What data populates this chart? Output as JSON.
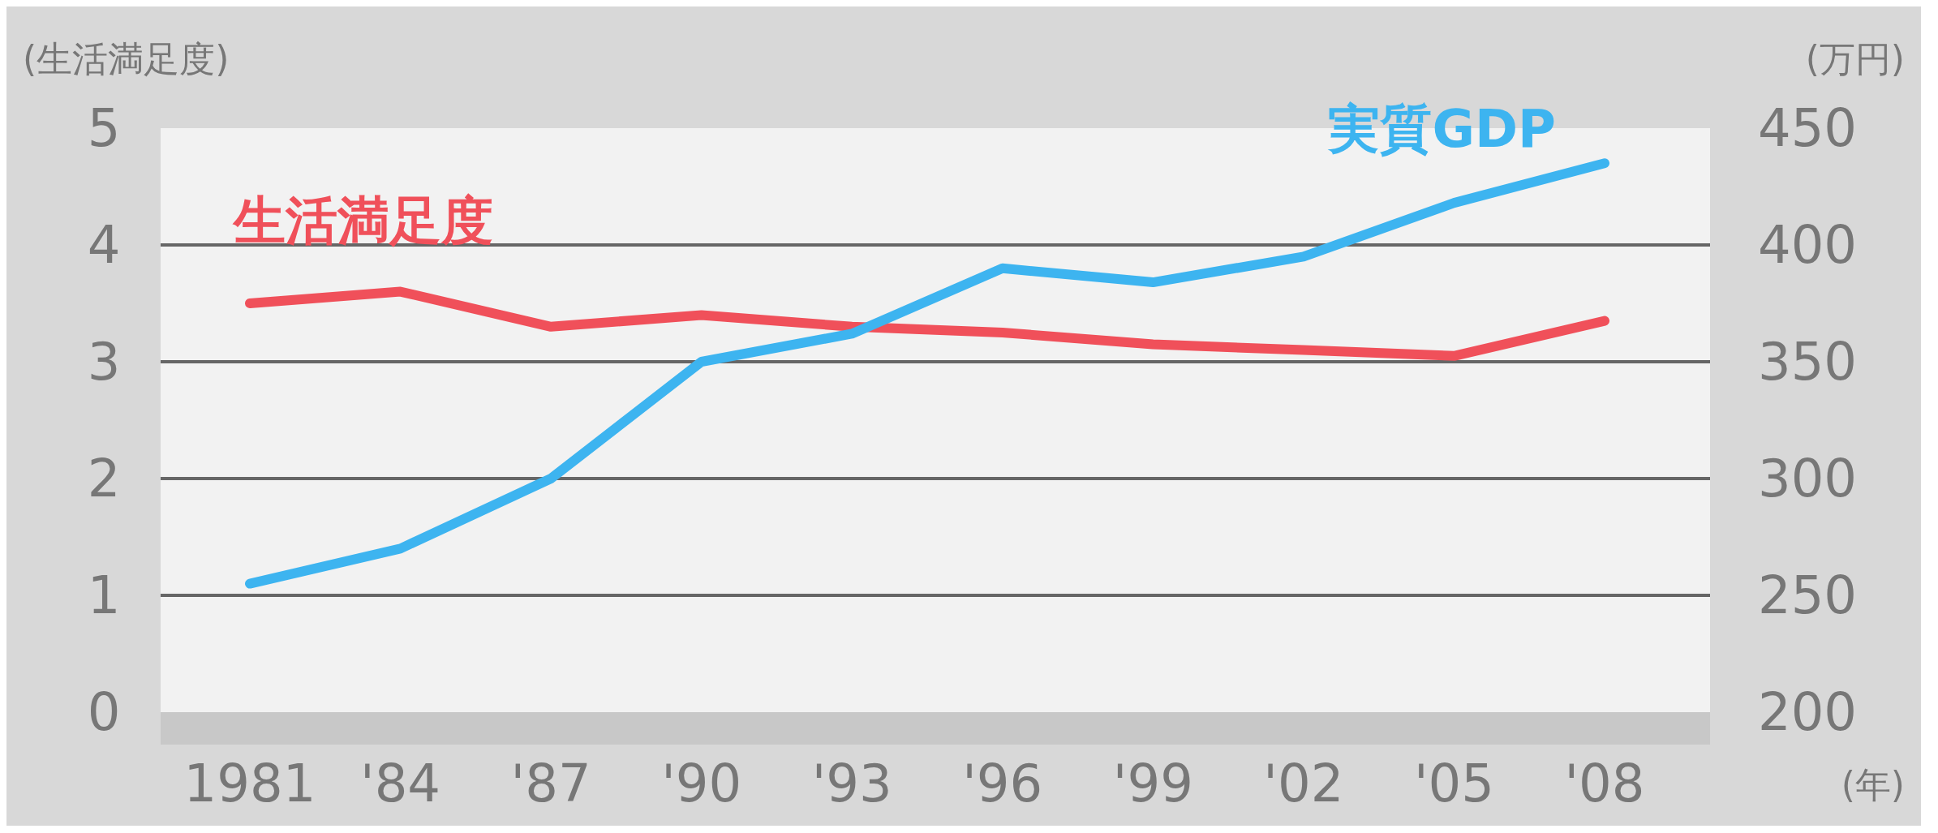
{
  "chart_data": {
    "type": "line",
    "categories": [
      "1981",
      "'84",
      "'87",
      "'90",
      "'93",
      "'96",
      "'99",
      "'02",
      "'05",
      "'08"
    ],
    "series": [
      {
        "name": "生活満足度",
        "color": "#f0505a",
        "values": [
          3.5,
          3.6,
          3.3,
          3.4,
          3.3,
          3.25,
          3.15,
          3.1,
          3.05,
          3.35
        ]
      },
      {
        "name": "実質GDP",
        "color": "#3db4f0",
        "axis": "y2",
        "values": [
          255,
          270,
          300,
          350,
          362,
          390,
          384,
          395,
          418,
          435
        ]
      }
    ],
    "ylabel": "(生活満足度)",
    "y2label": "(万円)",
    "xlabel": "(年)",
    "ylim": [
      0,
      5
    ],
    "yticks": [
      0,
      1,
      2,
      3,
      4,
      5
    ],
    "y2lim": [
      200,
      450
    ],
    "y2ticks": [
      200,
      250,
      300,
      350,
      400,
      450
    ],
    "grid": "y",
    "legend": false
  }
}
